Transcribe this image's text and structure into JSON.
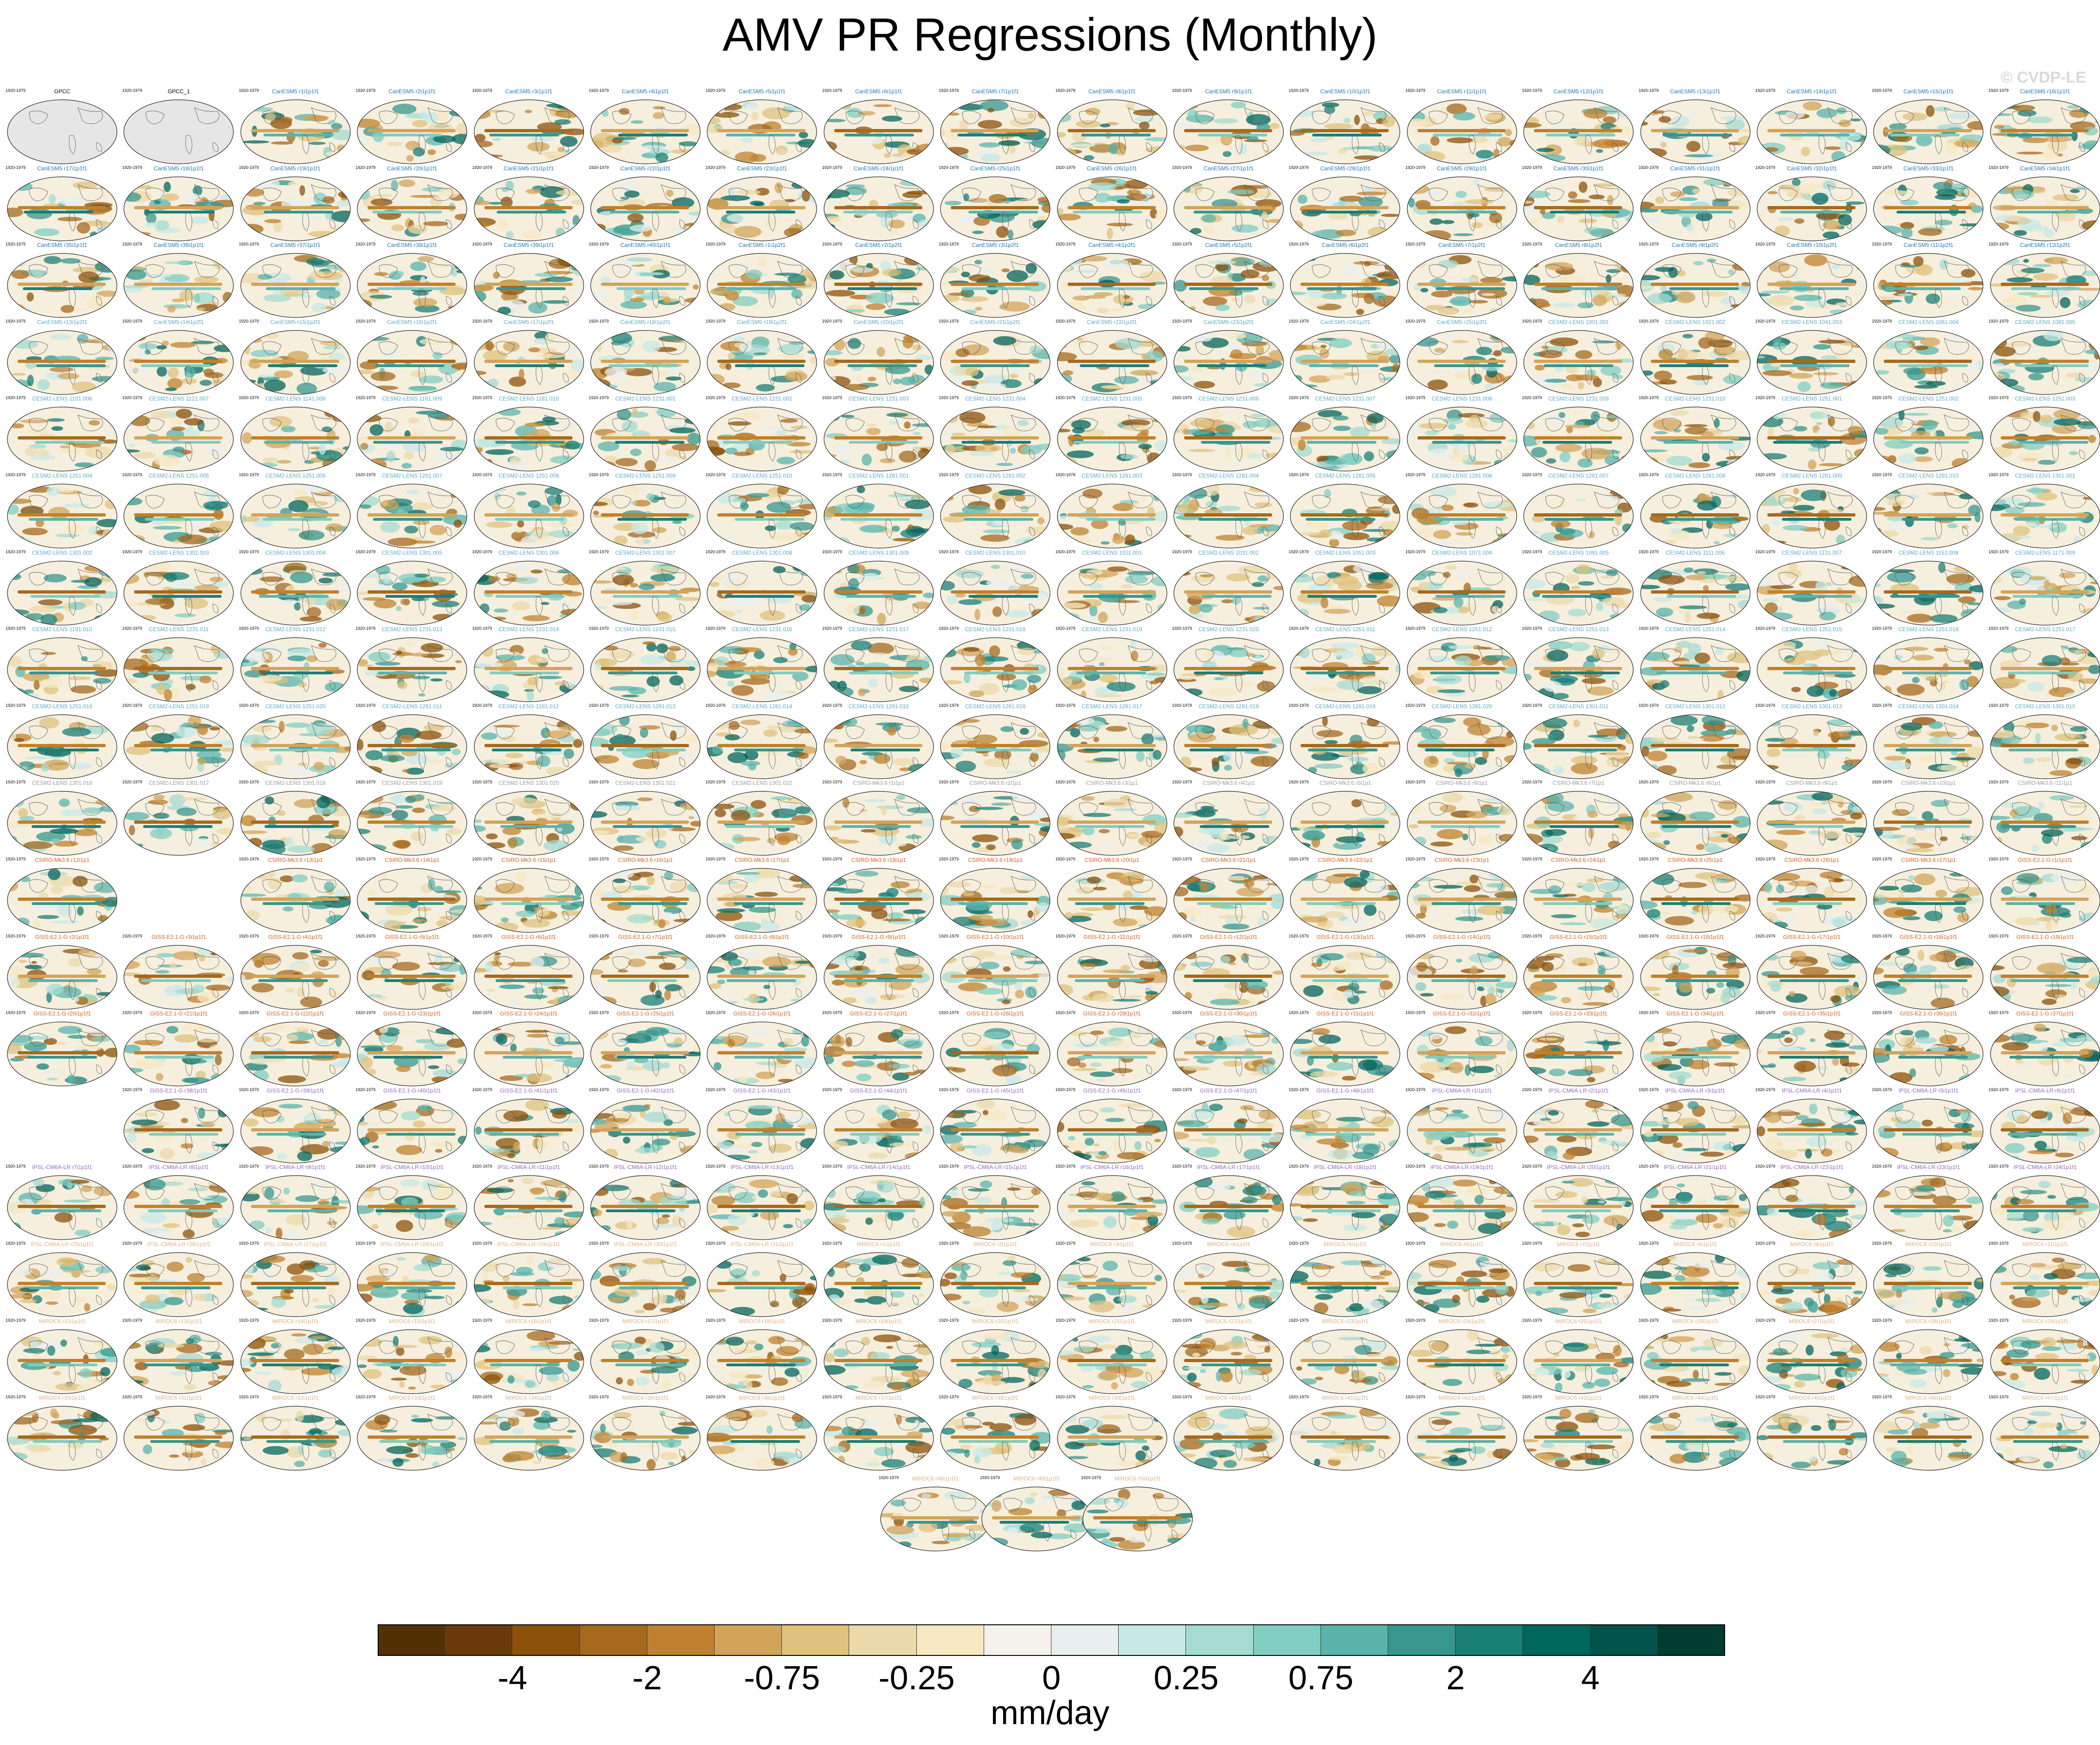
{
  "title": "AMV PR Regressions (Monthly)",
  "watermark": "© CVDP-LE",
  "chart_data": {
    "type": "heatmap",
    "title": "AMV PR Regressions (Monthly)",
    "projection": "Robinson-like global map panels",
    "panel_grid": "small multiples, 18 columns",
    "colorbar": {
      "units": "mm/day",
      "tick_labels": [
        "-4",
        "-2",
        "-0.75",
        "-0.25",
        "0",
        "0.25",
        "0.75",
        "2",
        "4"
      ],
      "colors": [
        "#543005",
        "#6b3a0b",
        "#8c510a",
        "#a66a1d",
        "#bf812d",
        "#d2a45a",
        "#dfc27d",
        "#ecd9a9",
        "#f6e8c3",
        "#f5f2ec",
        "#e8efee",
        "#c7eae5",
        "#a4dbd2",
        "#80cdc1",
        "#5ab4ac",
        "#35978f",
        "#1a7f77",
        "#01665e",
        "#00544b",
        "#003c30"
      ]
    },
    "rows": [
      {
        "labels": [
          "GPCC",
          "GPCC_1",
          "CanESM5 r1i1p1f1",
          "CanESM5 r2i1p1f1",
          "CanESM5 r3i1p1f1",
          "CanESM5 r4i1p1f1",
          "CanESM5 r5i1p1f1",
          "CanESM5 r6i1p1f1",
          "CanESM5 r7i1p1f1",
          "CanESM5 r8i1p1f1",
          "CanESM5 r9i1p1f1",
          "CanESM5 r10i1p1f1",
          "CanESM5 r11i1p1f1",
          "CanESM5 r12i1p1f1",
          "CanESM5 r13i1p1f1",
          "CanESM5 r14i1p1f1",
          "CanESM5 r15i1p1f1",
          "CanESM5 r16i1p1f1"
        ],
        "color": "#1f77b4"
      },
      {
        "labels": [
          "CanESM5 r17i1p1f1",
          "CanESM5 r18i1p1f1",
          "CanESM5 r19i1p1f1",
          "CanESM5 r20i1p1f1",
          "CanESM5 r21i1p1f1",
          "CanESM5 r22i1p1f1",
          "CanESM5 r23i1p1f1",
          "CanESM5 r24i1p1f1",
          "CanESM5 r25i1p1f1",
          "CanESM5 r26i1p1f1",
          "CanESM5 r27i1p1f1",
          "CanESM5 r28i1p1f1",
          "CanESM5 r29i1p1f1",
          "CanESM5 r30i1p1f1",
          "CanESM5 r31i1p1f1",
          "CanESM5 r32i1p1f1",
          "CanESM5 r33i1p1f1",
          "CanESM5 r34i1p1f1"
        ],
        "color": "#1f77b4"
      },
      {
        "labels": [
          "CanESM5 r35i1p1f1",
          "CanESM5 r36i1p1f1",
          "CanESM5 r37i1p1f1",
          "CanESM5 r38i1p1f1",
          "CanESM5 r39i1p1f1",
          "CanESM5 r40i1p1f1",
          "CanESM5 r1i1p2f1",
          "CanESM5 r2i1p2f1",
          "CanESM5 r3i1p2f1",
          "CanESM5 r4i1p2f1",
          "CanESM5 r5i1p2f1",
          "CanESM5 r6i1p2f1",
          "CanESM5 r7i1p2f1",
          "CanESM5 r8i1p2f1",
          "CanESM5 r9i1p2f1",
          "CanESM5 r10i1p2f1",
          "CanESM5 r11i1p2f1",
          "CanESM5 r12i1p2f1"
        ],
        "color": "#1f77b4"
      },
      {
        "labels": [
          "CanESM5 r13i1p2f1",
          "CanESM5 r14i1p2f1",
          "CanESM5 r15i1p2f1",
          "CanESM5 r16i1p2f1",
          "CanESM5 r17i1p2f1",
          "CanESM5 r18i1p2f1",
          "CanESM5 r19i1p2f1",
          "CanESM5 r20i1p2f1",
          "CanESM5 r21i1p2f1",
          "CanESM5 r22i1p2f1",
          "CanESM5 r23i1p2f1",
          "CanESM5 r24i1p2f1",
          "CanESM5 r25i1p2f1",
          "CESM2-LENS 1001.001",
          "CESM2-LENS 1021.002",
          "CESM2-LENS 1041.003",
          "CESM2-LENS 1061.004",
          "CESM2-LENS 1081.005"
        ],
        "color": "#5aa9c6"
      },
      {
        "labels": [
          "CESM2-LENS 1101.006",
          "CESM2-LENS 1121.007",
          "CESM2-LENS 1141.008",
          "CESM2-LENS 1161.009",
          "CESM2-LENS 1181.010",
          "CESM2-LENS 1231.001",
          "CESM2-LENS 1231.002",
          "CESM2-LENS 1231.003",
          "CESM2-LENS 1231.004",
          "CESM2-LENS 1231.005",
          "CESM2-LENS 1231.006",
          "CESM2-LENS 1231.007",
          "CESM2-LENS 1231.008",
          "CESM2-LENS 1231.009",
          "CESM2-LENS 1231.010",
          "CESM2-LENS 1251.001",
          "CESM2-LENS 1251.002",
          "CESM2-LENS 1251.003"
        ],
        "color": "#5aa9c6"
      },
      {
        "labels": [
          "CESM2-LENS 1251.004",
          "CESM2-LENS 1251.005",
          "CESM2-LENS 1251.006",
          "CESM2-LENS 1251.007",
          "CESM2-LENS 1251.008",
          "CESM2-LENS 1251.009",
          "CESM2-LENS 1251.010",
          "CESM2-LENS 1281.001",
          "CESM2-LENS 1281.002",
          "CESM2-LENS 1281.003",
          "CESM2-LENS 1281.004",
          "CESM2-LENS 1281.005",
          "CESM2-LENS 1281.006",
          "CESM2-LENS 1281.007",
          "CESM2-LENS 1281.008",
          "CESM2-LENS 1281.009",
          "CESM2-LENS 1281.010",
          "CESM2-LENS 1301.001"
        ],
        "color": "#5aa9c6"
      },
      {
        "labels": [
          "CESM2-LENS 1301.002",
          "CESM2-LENS 1301.003",
          "CESM2-LENS 1301.004",
          "CESM2-LENS 1301.005",
          "CESM2-LENS 1301.006",
          "CESM2-LENS 1301.007",
          "CESM2-LENS 1301.008",
          "CESM2-LENS 1301.009",
          "CESM2-LENS 1301.010",
          "CESM2-LENS 1011.001",
          "CESM2-LENS 1031.002",
          "CESM2-LENS 1051.003",
          "CESM2-LENS 1071.004",
          "CESM2-LENS 1091.005",
          "CESM2-LENS 1111.006",
          "CESM2-LENS 1131.007",
          "CESM2-LENS 1151.008",
          "CESM2-LENS 1171.009"
        ],
        "color": "#5aa9c6"
      },
      {
        "labels": [
          "CESM2-LENS 1191.010",
          "CESM2-LENS 1231.011",
          "CESM2-LENS 1231.012",
          "CESM2-LENS 1231.013",
          "CESM2-LENS 1231.014",
          "CESM2-LENS 1231.015",
          "CESM2-LENS 1231.016",
          "CESM2-LENS 1231.017",
          "CESM2-LENS 1231.018",
          "CESM2-LENS 1231.019",
          "CESM2-LENS 1231.020",
          "CESM2-LENS 1251.011",
          "CESM2-LENS 1251.012",
          "CESM2-LENS 1251.013",
          "CESM2-LENS 1251.014",
          "CESM2-LENS 1251.015",
          "CESM2-LENS 1251.016",
          "CESM2-LENS 1251.017"
        ],
        "color": "#5aa9c6"
      },
      {
        "labels": [
          "CESM2-LENS 1251.018",
          "CESM2-LENS 1251.019",
          "CESM2-LENS 1251.020",
          "CESM2-LENS 1281.011",
          "CESM2-LENS 1281.012",
          "CESM2-LENS 1281.013",
          "CESM2-LENS 1281.014",
          "CESM2-LENS 1281.015",
          "CESM2-LENS 1281.016",
          "CESM2-LENS 1281.017",
          "CESM2-LENS 1281.018",
          "CESM2-LENS 1281.019",
          "CESM2-LENS 1281.020",
          "CESM2-LENS 1301.011",
          "CESM2-LENS 1301.012",
          "CESM2-LENS 1301.013",
          "CESM2-LENS 1301.014",
          "CESM2-LENS 1301.015"
        ],
        "color": "#5aa9c6"
      },
      {
        "labels": [
          "CESM2-LENS 1301.016",
          "CESM2-LENS 1301.017",
          "CESM2-LENS 1301.018",
          "CESM2-LENS 1301.019",
          "CESM2-LENS 1301.020",
          "CESM2-LENS 1301.021",
          "CESM2-LENS 1301.022",
          "CSIRO-Mk3.6 r1i1p1",
          "CSIRO-Mk3.6 r2i1p1",
          "CSIRO-Mk3.6 r3i1p1",
          "CSIRO-Mk3.6 r4i1p1",
          "CSIRO-Mk3.6 r5i1p1",
          "CSIRO-Mk3.6 r6i1p1",
          "CSIRO-Mk3.6 r7i1p1",
          "CSIRO-Mk3.6 r8i1p1",
          "CSIRO-Mk3.6 r9i1p1",
          "CSIRO-Mk3.6 r10i1p1",
          "CSIRO-Mk3.6 r11i1p1"
        ],
        "color": "#9a9a9a"
      },
      {
        "labels": [
          "CSIRO-Mk3.6 r12i1p1",
          "",
          "CSIRO-Mk3.6 r13i1p1",
          "CSIRO-Mk3.6 r14i1p1",
          "CSIRO-Mk3.6 r15i1p1",
          "CSIRO-Mk3.6 r16i1p1",
          "CSIRO-Mk3.6 r17i1p1",
          "CSIRO-Mk3.6 r18i1p1",
          "CSIRO-Mk3.6 r19i1p1",
          "CSIRO-Mk3.6 r20i1p1",
          "CSIRO-Mk3.6 r21i1p1",
          "CSIRO-Mk3.6 r22i1p1",
          "CSIRO-Mk3.6 r23i1p1",
          "CSIRO-Mk3.6 r24i1p1",
          "CSIRO-Mk3.6 r25i1p1",
          "CSIRO-Mk3.6 r26i1p1",
          "CSIRO-Mk3.6 r27i1p1",
          "GISS-E2.1-G r1i1p1f1"
        ],
        "color": "#d65f1a"
      },
      {
        "labels": [
          "GISS-E2.1-G r2i1p1f1",
          "GISS-E2.1-G r3i1p1f1",
          "GISS-E2.1-G r4i1p1f1",
          "GISS-E2.1-G r5i1p1f1",
          "GISS-E2.1-G r6i1p1f1",
          "GISS-E2.1-G r7i1p1f1",
          "GISS-E2.1-G r8i1p1f1",
          "GISS-E2.1-G r9i1p1f1",
          "GISS-E2.1-G r10i1p1f1",
          "GISS-E2.1-G r11i1p1f1",
          "GISS-E2.1-G r12i1p1f1",
          "GISS-E2.1-G r13i1p1f1",
          "GISS-E2.1-G r14i1p1f1",
          "GISS-E2.1-G r15i1p1f1",
          "GISS-E2.1-G r16i1p1f1",
          "GISS-E2.1-G r17i1p1f1",
          "GISS-E2.1-G r18i1p1f1",
          "GISS-E2.1-G r19i1p1f1"
        ],
        "color": "#d65f1a"
      },
      {
        "labels": [
          "GISS-E2.1-G r20i1p1f1",
          "GISS-E2.1-G r21i1p1f1",
          "GISS-E2.1-G r22i1p1f1",
          "GISS-E2.1-G r23i1p1f1",
          "GISS-E2.1-G r24i1p1f1",
          "GISS-E2.1-G r25i1p1f1",
          "GISS-E2.1-G r26i1p1f1",
          "GISS-E2.1-G r27i1p1f1",
          "GISS-E2.1-G r28i1p1f1",
          "GISS-E2.1-G r29i1p1f1",
          "GISS-E2.1-G r30i1p1f1",
          "GISS-E2.1-G r31i1p1f1",
          "GISS-E2.1-G r32i1p1f1",
          "GISS-E2.1-G r33i1p1f1",
          "GISS-E2.1-G r34i1p1f1",
          "GISS-E2.1-G r35i1p1f1",
          "GISS-E2.1-G r36i1p1f1",
          "GISS-E2.1-G r37i1p1f1"
        ],
        "color": "#d65f1a"
      },
      {
        "labels": [
          "",
          "GISS-E2.1-G r38i1p1f1",
          "GISS-E2.1-G r39i1p1f1",
          "GISS-E2.1-G r40i1p1f1",
          "GISS-E2.1-G r41i1p1f1",
          "GISS-E2.1-G r42i1p1f1",
          "GISS-E2.1-G r43i1p1f1",
          "GISS-E2.1-G r44i1p1f1",
          "GISS-E2.1-G r45i1p1f1",
          "GISS-E2.1-G r46i1p1f1",
          "GISS-E2.1-G r47i1p1f1",
          "GISS-E2.1-G r48i1p1f1",
          "IPSL-CM6A-LR r1i1p1f1",
          "IPSL-CM6A-LR r2i1p1f1",
          "IPSL-CM6A-LR r3i1p1f1",
          "IPSL-CM6A-LR r4i1p1f1",
          "IPSL-CM6A-LR r5i1p1f1",
          "IPSL-CM6A-LR r6i1p1f1"
        ],
        "color": "#9467bd"
      },
      {
        "labels": [
          "IPSL-CM6A-LR r7i1p1f1",
          "IPSL-CM6A-LR r8i1p1f1",
          "IPSL-CM6A-LR r9i1p1f1",
          "IPSL-CM6A-LR r10i1p1f1",
          "IPSL-CM6A-LR r11i1p1f1",
          "IPSL-CM6A-LR r12i1p1f1",
          "IPSL-CM6A-LR r13i1p1f1",
          "IPSL-CM6A-LR r14i1p1f1",
          "IPSL-CM6A-LR r15i1p1f1",
          "IPSL-CM6A-LR r16i1p1f1",
          "IPSL-CM6A-LR r17i1p1f1",
          "IPSL-CM6A-LR r18i1p1f1",
          "IPSL-CM6A-LR r19i1p1f1",
          "IPSL-CM6A-LR r20i1p1f1",
          "IPSL-CM6A-LR r21i1p1f1",
          "IPSL-CM6A-LR r22i1p1f1",
          "IPSL-CM6A-LR r23i1p1f1",
          "IPSL-CM6A-LR r24i1p1f1"
        ],
        "color": "#9467bd"
      },
      {
        "labels": [
          "IPSL-CM6A-LR r25i1p1f1",
          "IPSL-CM6A-LR r26i1p1f1",
          "IPSL-CM6A-LR r27i1p1f1",
          "IPSL-CM6A-LR r28i1p1f1",
          "IPSL-CM6A-LR r29i1p1f1",
          "IPSL-CM6A-LR r30i1p1f1",
          "IPSL-CM6A-LR r31i1p1f1",
          "MIROC6 r1i1p1f1",
          "MIROC6 r2i1p1f1",
          "MIROC6 r3i1p1f1",
          "MIROC6 r4i1p1f1",
          "MIROC6 r5i1p1f1",
          "MIROC6 r6i1p1f1",
          "MIROC6 r7i1p1f1",
          "MIROC6 r8i1p1f1",
          "MIROC6 r9i1p1f1",
          "MIROC6 r10i1p1f1",
          "MIROC6 r11i1p1f1"
        ],
        "color": "#e0b080"
      },
      {
        "labels": [
          "MIROC6 r12i1p1f1",
          "MIROC6 r13i1p1f1",
          "MIROC6 r14i1p1f1",
          "MIROC6 r15i1p1f1",
          "MIROC6 r16i1p1f1",
          "MIROC6 r17i1p1f1",
          "MIROC6 r18i1p1f1",
          "MIROC6 r19i1p1f1",
          "MIROC6 r20i1p1f1",
          "MIROC6 r21i1p1f1",
          "MIROC6 r22i1p1f1",
          "MIROC6 r23i1p1f1",
          "MIROC6 r24i1p1f1",
          "MIROC6 r25i1p1f1",
          "MIROC6 r26i1p1f1",
          "MIROC6 r27i1p1f1",
          "MIROC6 r28i1p1f1",
          "MIROC6 r29i1p1f1"
        ],
        "color": "#e0b080"
      },
      {
        "labels": [
          "MIROC6 r30i1p1f1",
          "MIROC6 r31i1p1f1",
          "MIROC6 r32i1p1f1",
          "MIROC6 r33i1p1f1",
          "MIROC6 r34i1p1f1",
          "MIROC6 r35i1p1f1",
          "MIROC6 r36i1p1f1",
          "MIROC6 r37i1p1f1",
          "MIROC6 r38i1p1f1",
          "MIROC6 r39i1p1f1",
          "MIROC6 r40i1p1f1",
          "MIROC6 r41i1p1f1",
          "MIROC6 r42i1p1f1",
          "MIROC6 r43i1p1f1",
          "MIROC6 r44i1p1f1",
          "MIROC6 r45i1p1f1",
          "MIROC6 r46i1p1f1",
          "MIROC6 r47i1p1f1"
        ],
        "color": "#e0b080"
      },
      {
        "labels": [
          "MIROC6 r48i1p1f1",
          "MIROC6 r49i1p1f1",
          "MIROC6 r50i1p1f1"
        ],
        "color": "#e0b080",
        "centered": true
      }
    ],
    "panel_years": "1920-1979",
    "observations_fill": "#e6e6e6"
  }
}
